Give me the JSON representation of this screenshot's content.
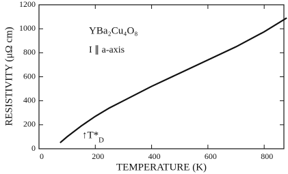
{
  "chart_data": {
    "type": "line",
    "xlabel": "TEMPERATURE (K)",
    "ylabel": "RESISTIVITY (μΩ cm)",
    "sample_label": "YBa₂Cu₄O₈",
    "orientation_label": "I ∥ a-axis",
    "td_label": "↑T*",
    "td_subscript": "D",
    "x": [
      75,
      100,
      150,
      200,
      250,
      300,
      400,
      500,
      600,
      700,
      800,
      880
    ],
    "values": [
      50,
      100,
      190,
      270,
      340,
      400,
      520,
      630,
      740,
      850,
      975,
      1090
    ],
    "color": "#111111",
    "xlim": [
      0,
      870
    ],
    "ylim": [
      0,
      1200
    ],
    "xticks": [
      0,
      200,
      400,
      600,
      800
    ],
    "yticks": [
      0,
      200,
      400,
      600,
      800,
      1000,
      1200
    ]
  }
}
